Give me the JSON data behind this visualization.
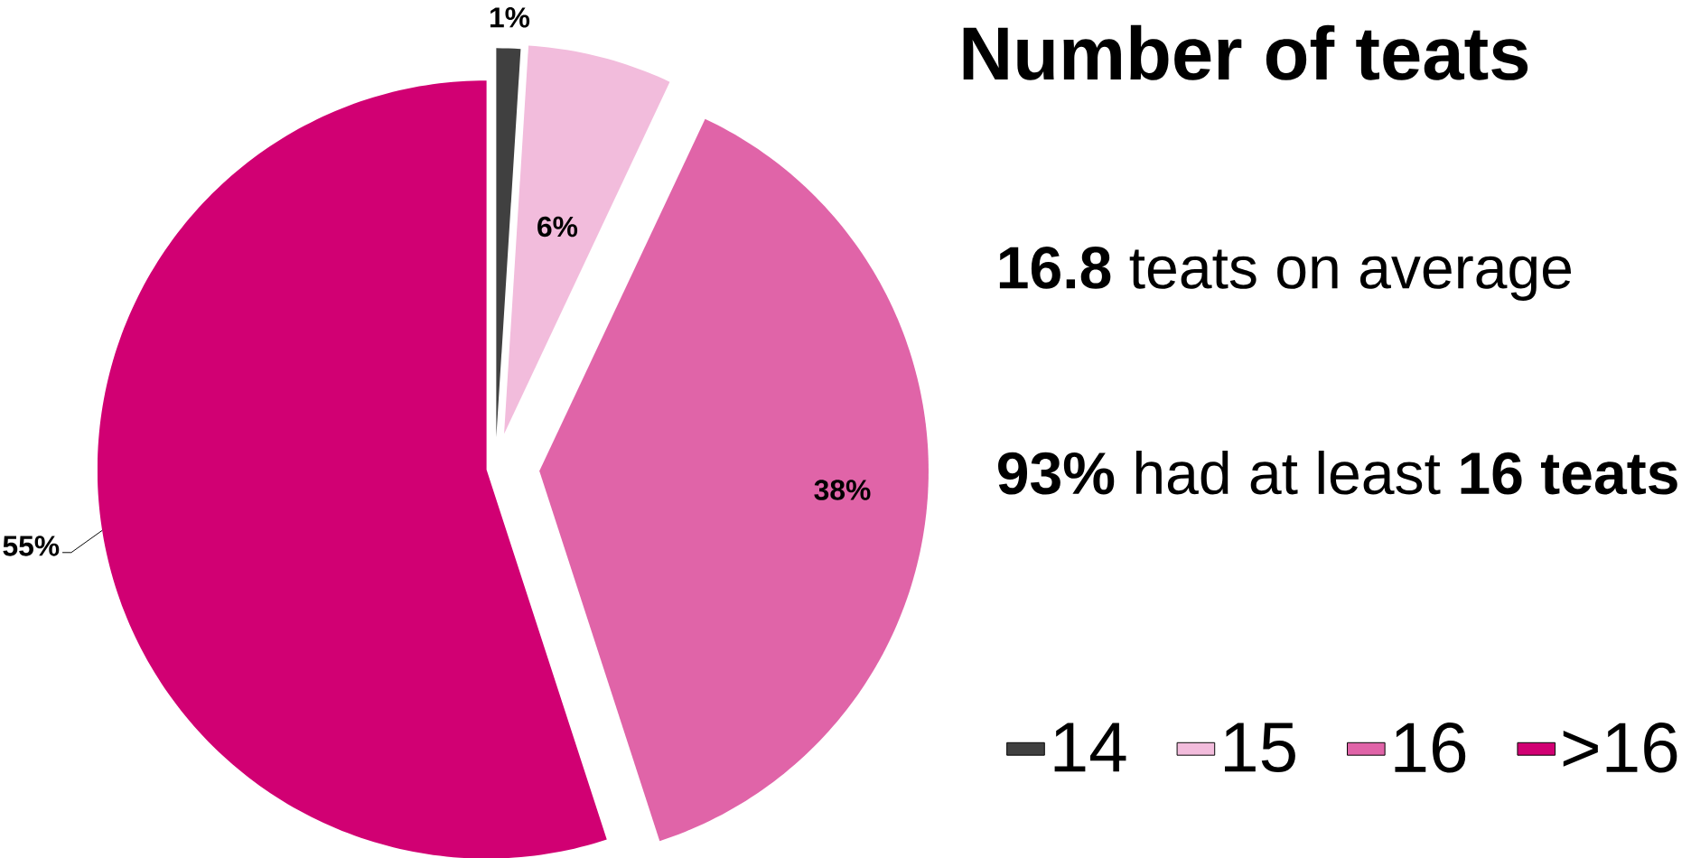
{
  "chart_data": {
    "type": "pie",
    "title": "Number of teats",
    "annotations": [
      "**16.8** teats on average",
      "**93%** had at least **16 teats**"
    ],
    "categories": [
      "14",
      "15",
      "16",
      ">16"
    ],
    "values": [
      1,
      6,
      38,
      55
    ],
    "colors": [
      "#404040",
      "#f2bcdc",
      "#e064a8",
      "#d10073"
    ],
    "value_labels": [
      "1%",
      "6%",
      "38%",
      "55%"
    ],
    "legend": "right"
  }
}
